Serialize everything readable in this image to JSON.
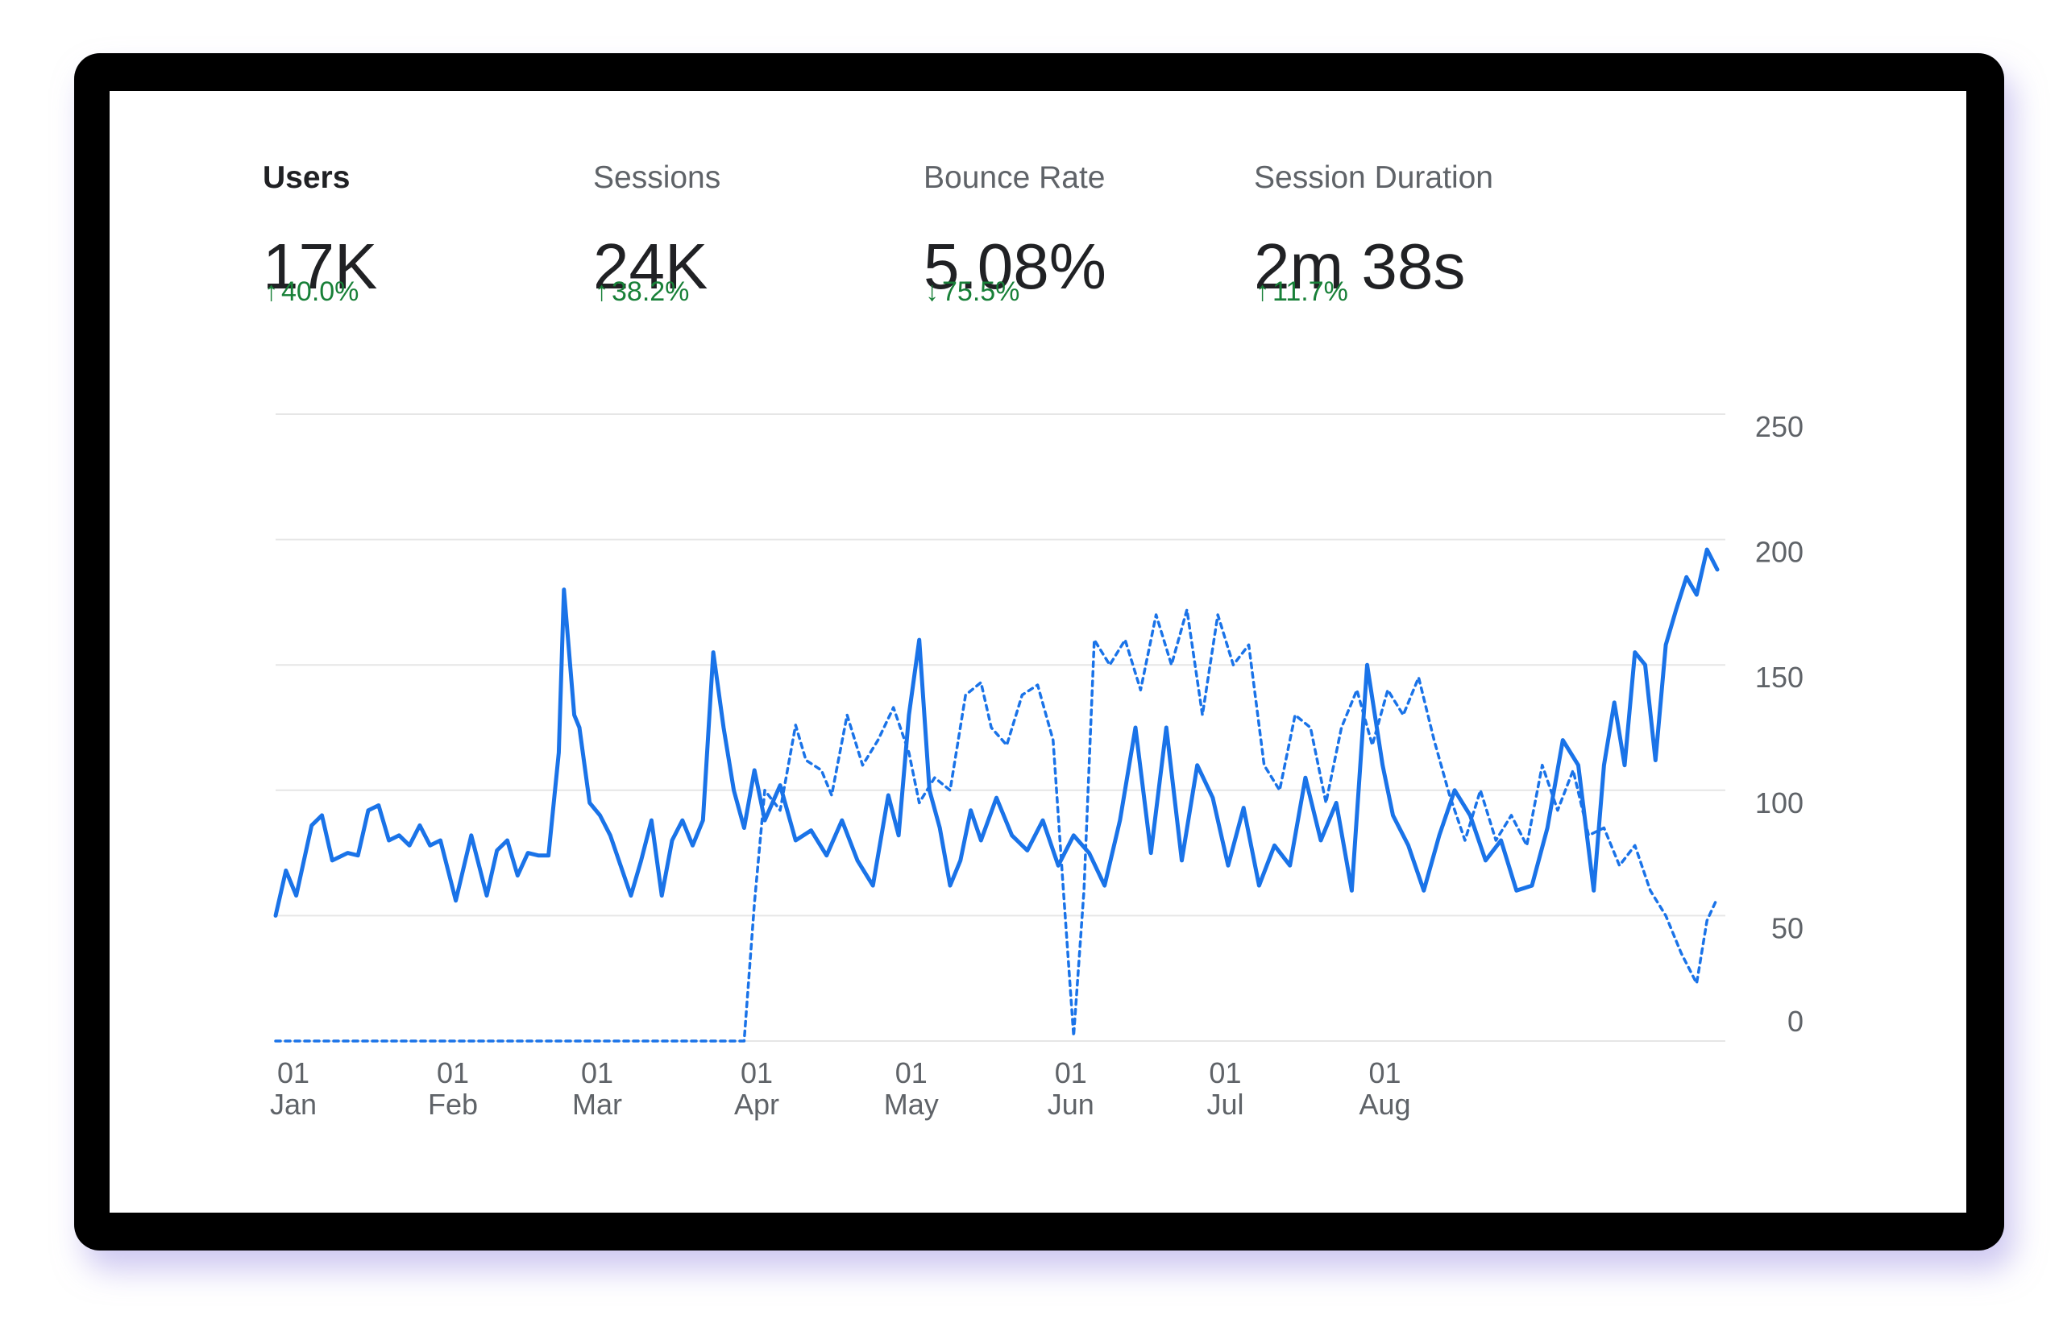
{
  "metrics": [
    {
      "label": "Users",
      "value": "17K",
      "direction": "up",
      "arrow": "↑",
      "delta": "40.0%",
      "active": true
    },
    {
      "label": "Sessions",
      "value": "24K",
      "direction": "up",
      "arrow": "↑",
      "delta": "38.2%",
      "active": false
    },
    {
      "label": "Bounce Rate",
      "value": "5.08%",
      "direction": "down",
      "arrow": "↓",
      "delta": "75.5%",
      "active": false
    },
    {
      "label": "Session Duration",
      "value": "2m 38s",
      "direction": "up",
      "arrow": "↑",
      "delta": "11.7%",
      "active": false
    }
  ],
  "colors": {
    "series_primary": "#1a73e8",
    "series_comparison": "#1a73e8",
    "delta_positive": "#188038",
    "frame": "#000000"
  },
  "chart_data": {
    "type": "line",
    "y_ticks": [
      "250",
      "200",
      "150",
      "100",
      "50",
      "0"
    ],
    "ylim": [
      0,
      250
    ],
    "x_ticks": [
      {
        "day": "01",
        "month": "Jan"
      },
      {
        "day": "01",
        "month": "Feb"
      },
      {
        "day": "01",
        "month": "Mar"
      },
      {
        "day": "01",
        "month": "Apr"
      },
      {
        "day": "01",
        "month": "May"
      },
      {
        "day": "01",
        "month": "Jun"
      },
      {
        "day": "01",
        "month": "Jul"
      },
      {
        "day": "01",
        "month": "Aug"
      }
    ],
    "grid": true,
    "series": [
      {
        "style": "solid",
        "points": [
          [
            "01 Jan",
            50
          ],
          [
            "03 Jan",
            68
          ],
          [
            "05 Jan",
            58
          ],
          [
            "08 Jan",
            86
          ],
          [
            "10 Jan",
            90
          ],
          [
            "12 Jan",
            72
          ],
          [
            "15 Jan",
            75
          ],
          [
            "17 Jan",
            74
          ],
          [
            "19 Jan",
            92
          ],
          [
            "21 Jan",
            94
          ],
          [
            "23 Jan",
            80
          ],
          [
            "25 Jan",
            82
          ],
          [
            "27 Jan",
            78
          ],
          [
            "29 Jan",
            86
          ],
          [
            "31 Jan",
            78
          ],
          [
            "02 Feb",
            80
          ],
          [
            "05 Feb",
            56
          ],
          [
            "08 Feb",
            82
          ],
          [
            "11 Feb",
            58
          ],
          [
            "13 Feb",
            76
          ],
          [
            "15 Feb",
            80
          ],
          [
            "17 Feb",
            66
          ],
          [
            "19 Feb",
            75
          ],
          [
            "21 Feb",
            74
          ],
          [
            "23 Feb",
            74
          ],
          [
            "25 Feb",
            115
          ],
          [
            "26 Feb",
            180
          ],
          [
            "28 Feb",
            130
          ],
          [
            "01 Mar",
            125
          ],
          [
            "03 Mar",
            95
          ],
          [
            "05 Mar",
            90
          ],
          [
            "07 Mar",
            82
          ],
          [
            "09 Mar",
            70
          ],
          [
            "11 Mar",
            58
          ],
          [
            "13 Mar",
            72
          ],
          [
            "15 Mar",
            88
          ],
          [
            "17 Mar",
            58
          ],
          [
            "19 Mar",
            80
          ],
          [
            "21 Mar",
            88
          ],
          [
            "23 Mar",
            78
          ],
          [
            "25 Mar",
            88
          ],
          [
            "27 Mar",
            155
          ],
          [
            "29 Mar",
            125
          ],
          [
            "31 Mar",
            100
          ],
          [
            "02 Apr",
            85
          ],
          [
            "04 Apr",
            108
          ],
          [
            "06 Apr",
            88
          ],
          [
            "09 Apr",
            102
          ],
          [
            "12 Apr",
            80
          ],
          [
            "15 Apr",
            84
          ],
          [
            "18 Apr",
            74
          ],
          [
            "21 Apr",
            88
          ],
          [
            "24 Apr",
            72
          ],
          [
            "27 Apr",
            62
          ],
          [
            "30 Apr",
            98
          ],
          [
            "02 May",
            82
          ],
          [
            "04 May",
            130
          ],
          [
            "06 May",
            160
          ],
          [
            "08 May",
            100
          ],
          [
            "10 May",
            85
          ],
          [
            "12 May",
            62
          ],
          [
            "14 May",
            72
          ],
          [
            "16 May",
            92
          ],
          [
            "18 May",
            80
          ],
          [
            "21 May",
            97
          ],
          [
            "24 May",
            82
          ],
          [
            "27 May",
            76
          ],
          [
            "30 May",
            88
          ],
          [
            "02 Jun",
            70
          ],
          [
            "05 Jun",
            82
          ],
          [
            "08 Jun",
            75
          ],
          [
            "11 Jun",
            62
          ],
          [
            "14 Jun",
            88
          ],
          [
            "17 Jun",
            125
          ],
          [
            "20 Jun",
            75
          ],
          [
            "23 Jun",
            125
          ],
          [
            "26 Jun",
            72
          ],
          [
            "29 Jun",
            110
          ],
          [
            "02 Jul",
            97
          ],
          [
            "05 Jul",
            70
          ],
          [
            "08 Jul",
            93
          ],
          [
            "11 Jul",
            62
          ],
          [
            "14 Jul",
            78
          ],
          [
            "17 Jul",
            70
          ],
          [
            "20 Jul",
            105
          ],
          [
            "23 Jul",
            80
          ],
          [
            "26 Jul",
            95
          ],
          [
            "29 Jul",
            60
          ],
          [
            "01 Aug",
            150
          ],
          [
            "04 Aug",
            110
          ],
          [
            "06 Aug",
            90
          ],
          [
            "09 Aug",
            78
          ],
          [
            "12 Aug",
            60
          ],
          [
            "15 Aug",
            82
          ],
          [
            "18 Aug",
            100
          ],
          [
            "21 Aug",
            90
          ],
          [
            "24 Aug",
            72
          ],
          [
            "27 Aug",
            80
          ],
          [
            "30 Aug",
            60
          ],
          [
            "02 Sep",
            62
          ],
          [
            "05 Sep",
            85
          ],
          [
            "08 Sep",
            120
          ],
          [
            "11 Sep",
            110
          ],
          [
            "14 Sep",
            60
          ],
          [
            "16 Sep",
            110
          ],
          [
            "18 Sep",
            135
          ],
          [
            "20 Sep",
            110
          ],
          [
            "22 Sep",
            155
          ],
          [
            "24 Sep",
            150
          ],
          [
            "26 Sep",
            112
          ],
          [
            "28 Sep",
            158
          ],
          [
            "30 Sep",
            172
          ],
          [
            "02 Oct",
            185
          ],
          [
            "04 Oct",
            178
          ],
          [
            "06 Oct",
            196
          ],
          [
            "08 Oct",
            188
          ]
        ]
      },
      {
        "style": "dashed",
        "points": [
          [
            "01 Jan",
            0
          ],
          [
            "02 Apr",
            0
          ],
          [
            "04 Apr",
            55
          ],
          [
            "06 Apr",
            100
          ],
          [
            "09 Apr",
            92
          ],
          [
            "12 Apr",
            126
          ],
          [
            "14 Apr",
            112
          ],
          [
            "17 Apr",
            108
          ],
          [
            "19 Apr",
            98
          ],
          [
            "22 Apr",
            130
          ],
          [
            "25 Apr",
            110
          ],
          [
            "28 Apr",
            120
          ],
          [
            "01 May",
            133
          ],
          [
            "04 May",
            115
          ],
          [
            "06 May",
            95
          ],
          [
            "09 May",
            105
          ],
          [
            "12 May",
            100
          ],
          [
            "15 May",
            138
          ],
          [
            "18 May",
            143
          ],
          [
            "20 May",
            125
          ],
          [
            "23 May",
            118
          ],
          [
            "26 May",
            138
          ],
          [
            "29 May",
            142
          ],
          [
            "01 Jun",
            120
          ],
          [
            "03 Jun",
            60
          ],
          [
            "05 Jun",
            2
          ],
          [
            "07 Jun",
            60
          ],
          [
            "09 Jun",
            160
          ],
          [
            "12 Jun",
            150
          ],
          [
            "15 Jun",
            160
          ],
          [
            "18 Jun",
            140
          ],
          [
            "21 Jun",
            170
          ],
          [
            "24 Jun",
            150
          ],
          [
            "27 Jun",
            172
          ],
          [
            "30 Jun",
            130
          ],
          [
            "03 Jul",
            170
          ],
          [
            "06 Jul",
            150
          ],
          [
            "09 Jul",
            158
          ],
          [
            "12 Jul",
            110
          ],
          [
            "15 Jul",
            100
          ],
          [
            "18 Jul",
            130
          ],
          [
            "21 Jul",
            125
          ],
          [
            "24 Jul",
            95
          ],
          [
            "27 Jul",
            125
          ],
          [
            "30 Jul",
            140
          ],
          [
            "02 Aug",
            118
          ],
          [
            "05 Aug",
            140
          ],
          [
            "08 Aug",
            130
          ],
          [
            "11 Aug",
            145
          ],
          [
            "14 Aug",
            120
          ],
          [
            "17 Aug",
            98
          ],
          [
            "20 Aug",
            80
          ],
          [
            "23 Aug",
            100
          ],
          [
            "26 Aug",
            80
          ],
          [
            "29 Aug",
            90
          ],
          [
            "01 Sep",
            78
          ],
          [
            "04 Sep",
            110
          ],
          [
            "07 Sep",
            92
          ],
          [
            "10 Sep",
            108
          ],
          [
            "13 Sep",
            82
          ],
          [
            "16 Sep",
            85
          ],
          [
            "19 Sep",
            70
          ],
          [
            "22 Sep",
            78
          ],
          [
            "25 Sep",
            60
          ],
          [
            "28 Sep",
            50
          ],
          [
            "01 Oct",
            35
          ],
          [
            "04 Oct",
            23
          ],
          [
            "06 Oct",
            48
          ],
          [
            "08 Oct",
            57
          ]
        ]
      }
    ]
  }
}
